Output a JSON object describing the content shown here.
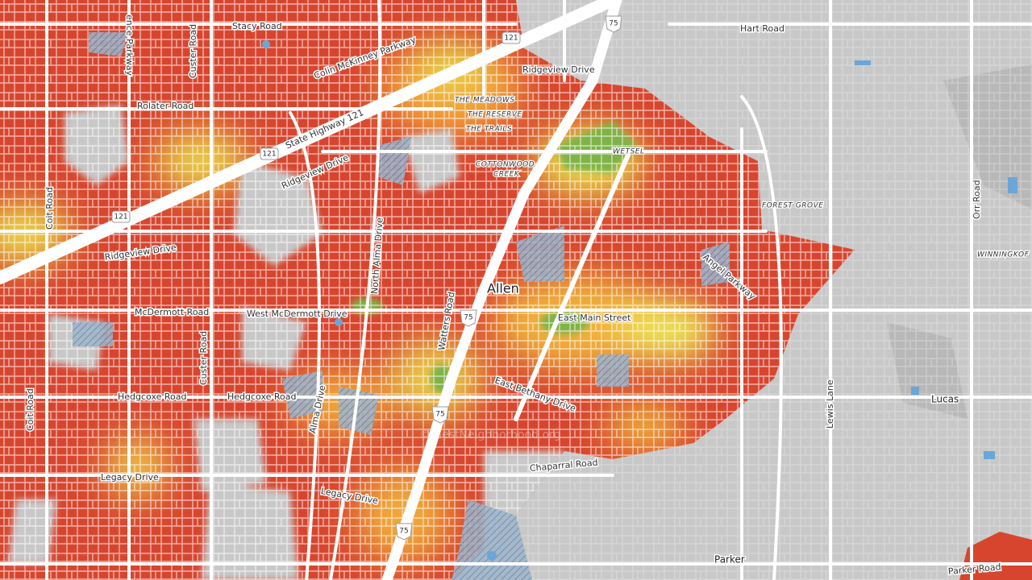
{
  "map": {
    "watermark": "© BestNeighborhood.org",
    "city": "Allen",
    "places": [
      "Lucas",
      "Parker"
    ],
    "neighborhoods": [
      "THE MEADOWS",
      "THE RESERVE",
      "THE TRAILS",
      "WETSEL",
      "COTTONWOOD",
      "CREEK",
      "FOREST GROVE",
      "WINNINGKOF"
    ],
    "roads": [
      "Stacy Road",
      "Colin McKinney Parkway",
      "Ridgeview Drive",
      "Hart Road",
      "Rolater Road",
      "State Highway 121",
      "Ridgeview Drive",
      "Coit Road",
      "Orr Road",
      "North Alma Drive",
      "Ridgeview Drive",
      "Angel Parkway",
      "McDermott Road",
      "West McDermott Drive",
      "Watters Road",
      "East Main Street",
      "Custer Road",
      "Hedgcoxe Road",
      "Hedgcoxe Road",
      "Alma Drive",
      "East Bethany Drive",
      "Lewis Lane",
      "Chaparral Road",
      "Legacy Drive",
      "Legacy Drive",
      "Parker Road",
      "Custer Road",
      "Coit Road",
      "ence Parkway"
    ],
    "shields": [
      "121",
      "121",
      "121",
      "75",
      "75",
      "75",
      "75"
    ]
  }
}
